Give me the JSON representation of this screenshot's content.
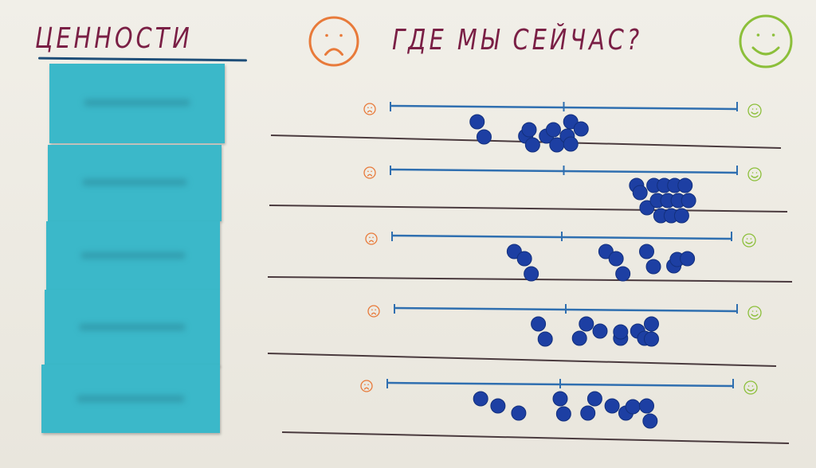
{
  "header": {
    "values_title": "ЦЕННОСТИ",
    "question_title": "ГДЕ МЫ СЕЙЧАС?"
  },
  "colors": {
    "title": "#7a1f45",
    "sad": "#e87a3a",
    "happy": "#8cbf3a",
    "scale": "#2f6fb0",
    "dot": "#1d3fa3",
    "note": "#3bb8c9"
  },
  "icons": {
    "sad": "sad-face-icon",
    "happy": "happy-face-icon"
  },
  "sticky_notes_count": 5,
  "rows": [
    {
      "votes": [
        0.25,
        0.27,
        0.39,
        0.4,
        0.41,
        0.45,
        0.47,
        0.48,
        0.51,
        0.52,
        0.55,
        0.52
      ]
    },
    {
      "votes": [
        0.71,
        0.72,
        0.74,
        0.76,
        0.77,
        0.78,
        0.79,
        0.8,
        0.81,
        0.82,
        0.83,
        0.84,
        0.85,
        0.86
      ]
    },
    {
      "votes": [
        0.36,
        0.39,
        0.41,
        0.63,
        0.66,
        0.68,
        0.75,
        0.77,
        0.83,
        0.84,
        0.87
      ]
    },
    {
      "votes": [
        0.42,
        0.44,
        0.54,
        0.56,
        0.6,
        0.66,
        0.66,
        0.71,
        0.73,
        0.75,
        0.75
      ]
    },
    {
      "votes": [
        0.27,
        0.32,
        0.38,
        0.5,
        0.51,
        0.58,
        0.6,
        0.65,
        0.69,
        0.71,
        0.75,
        0.76
      ]
    }
  ]
}
